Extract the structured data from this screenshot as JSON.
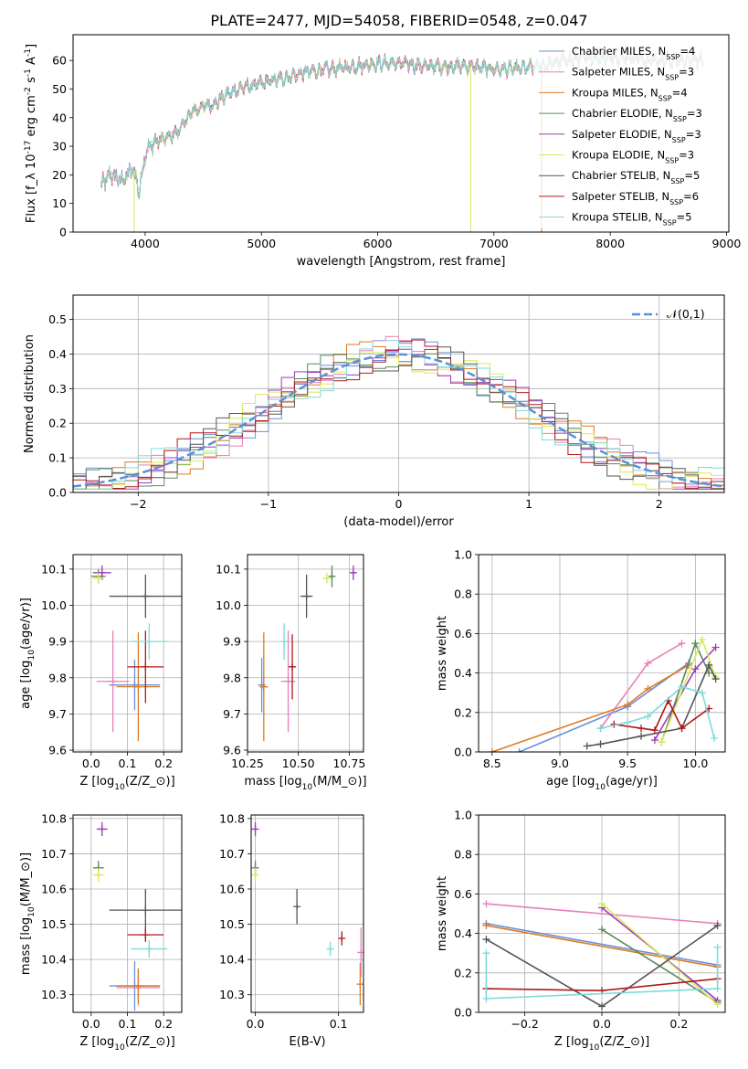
{
  "figure_title": "PLATE=2477, MJD=54058, FIBERID=0548, z=0.047",
  "series_styles": [
    {
      "name": "Chabrier MILES, N$_{SSP}$=4",
      "color": "#6a8fdc"
    },
    {
      "name": "Salpeter MILES, N$_{SSP}$=3",
      "color": "#e87fb8"
    },
    {
      "name": "Kroupa MILES, N$_{SSP}$=4",
      "color": "#dd7a22"
    },
    {
      "name": "Chabrier ELODIE, N$_{SSP}$=3",
      "color": "#5a8a5a"
    },
    {
      "name": "Salpeter ELODIE, N$_{SSP}$=3",
      "color": "#9b3db5"
    },
    {
      "name": "Kroupa ELODIE, N$_{SSP}$=3",
      "color": "#d6ea5a"
    },
    {
      "name": "Chabrier STELIB, N$_{SSP}$=5",
      "color": "#555555"
    },
    {
      "name": "Salpeter STELIB, N$_{SSP}$=6",
      "color": "#b01818"
    },
    {
      "name": "Kroupa STELIB, N$_{SSP}$=5",
      "color": "#7fdada"
    }
  ],
  "chart_data": [
    {
      "id": "spectrum",
      "type": "line",
      "xlabel": "wavelength [Angstrom, rest frame]",
      "ylabel": "Flux [$f_\\lambda 10^{-17}$ erg cm$^{-2}$ s$^{-1}$ A$^{-1}$]",
      "xlim": [
        3380,
        9020
      ],
      "ylim": [
        0,
        69
      ],
      "xticks": [
        4000,
        5000,
        6000,
        7000,
        8000,
        9000
      ],
      "yticks": [
        0,
        10,
        20,
        30,
        40,
        50,
        60
      ],
      "grid": false,
      "legend": "top-right",
      "continuum": {
        "x": [
          3620,
          3700,
          3800,
          3900,
          3950,
          4000,
          4100,
          4200,
          4300,
          4400,
          4500,
          4600,
          4700,
          4800,
          4900,
          5000,
          5200,
          5400,
          5600,
          5800,
          6000,
          6200,
          6400,
          6600,
          6800,
          7000,
          7200,
          7400,
          7600,
          7800,
          8000,
          8200,
          8400,
          8600,
          8800
        ],
        "y": [
          16,
          20,
          18,
          22,
          14,
          28,
          32,
          33,
          36,
          42,
          44,
          45,
          48,
          50,
          51,
          52,
          54,
          56,
          57,
          58,
          59,
          59,
          58,
          58,
          58,
          57,
          57,
          58,
          60,
          61,
          61,
          61,
          60,
          60,
          60
        ]
      },
      "dropouts": [
        {
          "series": "Kroupa ELODIE, N$_{SSP}$=3",
          "x": 3905,
          "y": 0
        },
        {
          "series": "Kroupa ELODIE, N$_{SSP}$=3",
          "x": 6800,
          "y": 0
        },
        {
          "series": "Kroupa MILES, N$_{SSP}$=4",
          "x": 7410,
          "y": 0
        }
      ]
    },
    {
      "id": "residuals",
      "type": "line",
      "xlabel": "(data-model)/error",
      "ylabel": "Normed distribution",
      "xlim": [
        -2.5,
        2.5
      ],
      "ylim": [
        0,
        0.57
      ],
      "xticks": [
        -2,
        -1,
        0,
        1,
        2
      ],
      "yticks": [
        0.0,
        0.1,
        0.2,
        0.3,
        0.4,
        0.5
      ],
      "grid": true,
      "legend": "top-right",
      "gaussian_label": "$\\mathcal{N}(0,1)$",
      "gaussian_color": "#5b8fd9",
      "bin_width": 0.1
    },
    {
      "id": "age-vs-Z",
      "type": "scatter",
      "xlabel": "Z [log$_{10}$($Z/Z_\\odot$)]",
      "ylabel": "age  [log$_{10}$($age/yr$)]",
      "xlim": [
        -0.05,
        0.25
      ],
      "ylim": [
        9.595,
        10.14
      ],
      "xticks": [
        0.0,
        0.1,
        0.2
      ],
      "yticks": [
        9.6,
        9.7,
        9.8,
        9.9,
        10.0,
        10.1
      ],
      "grid": true,
      "points": [
        {
          "x": 0.12,
          "y": 9.78,
          "ex": 0.07,
          "ey": 0.07,
          "c": 0
        },
        {
          "x": 0.06,
          "y": 9.79,
          "ex": 0.045,
          "ey": 0.14,
          "c": 1
        },
        {
          "x": 0.13,
          "y": 9.775,
          "ex": 0.06,
          "ey": 0.15,
          "c": 2
        },
        {
          "x": 0.02,
          "y": 10.08,
          "ex": 0.02,
          "ey": 0.02,
          "c": 3
        },
        {
          "x": 0.03,
          "y": 10.09,
          "ex": 0.025,
          "ey": 0.02,
          "c": 4
        },
        {
          "x": 0.02,
          "y": 10.075,
          "ex": 0.015,
          "ey": 0.015,
          "c": 5
        },
        {
          "x": 0.15,
          "y": 10.025,
          "ex": 0.1,
          "ey": 0.06,
          "c": 6
        },
        {
          "x": 0.15,
          "y": 9.83,
          "ex": 0.05,
          "ey": 0.1,
          "c": 7
        },
        {
          "x": 0.16,
          "y": 9.9,
          "ex": 0.05,
          "ey": 0.05,
          "c": 8
        }
      ]
    },
    {
      "id": "age-vs-mass",
      "type": "scatter",
      "xlabel": "mass [log$_{10}$($M/M_\\odot$)]",
      "ylabel": "",
      "xlim": [
        10.25,
        10.82
      ],
      "ylim": [
        9.595,
        10.14
      ],
      "xticks": [
        10.25,
        10.5,
        10.75
      ],
      "yticks": [
        9.6,
        9.7,
        9.8,
        9.9,
        10.0,
        10.1
      ],
      "grid": true,
      "points": [
        {
          "x": 10.32,
          "y": 9.78,
          "ex": 0.015,
          "ey": 0.075,
          "c": 0
        },
        {
          "x": 10.45,
          "y": 9.79,
          "ex": 0.035,
          "ey": 0.14,
          "c": 1
        },
        {
          "x": 10.33,
          "y": 9.775,
          "ex": 0.02,
          "ey": 0.15,
          "c": 2
        },
        {
          "x": 10.665,
          "y": 10.08,
          "ex": 0.012,
          "ey": 0.03,
          "c": 3
        },
        {
          "x": 10.77,
          "y": 10.09,
          "ex": 0.01,
          "ey": 0.02,
          "c": 4
        },
        {
          "x": 10.64,
          "y": 10.075,
          "ex": 0.02,
          "ey": 0.015,
          "c": 5
        },
        {
          "x": 10.54,
          "y": 10.025,
          "ex": 0.03,
          "ey": 0.06,
          "c": 6
        },
        {
          "x": 10.47,
          "y": 9.83,
          "ex": 0.015,
          "ey": 0.09,
          "c": 7
        },
        {
          "x": 10.43,
          "y": 9.9,
          "ex": 0.015,
          "ey": 0.05,
          "c": 8
        }
      ]
    },
    {
      "id": "mass-weight-vs-age",
      "type": "line",
      "xlabel": "age  [log$_{10}$($age/yr$)]",
      "ylabel": "mass weight",
      "xlim": [
        8.4,
        10.22
      ],
      "ylim": [
        0,
        1
      ],
      "xticks": [
        8.5,
        9.0,
        9.5,
        10.0
      ],
      "yticks": [
        0.0,
        0.2,
        0.4,
        0.6,
        0.8,
        1.0
      ],
      "grid": true,
      "series": [
        {
          "c": 0,
          "x": [
            8.7,
            9.5,
            9.95
          ],
          "y": [
            0.0,
            0.23,
            0.45
          ]
        },
        {
          "c": 1,
          "x": [
            9.3,
            9.65,
            9.9
          ],
          "y": [
            0.12,
            0.45,
            0.55
          ]
        },
        {
          "c": 2,
          "x": [
            8.5,
            9.5,
            9.65,
            9.95
          ],
          "y": [
            0.0,
            0.24,
            0.32,
            0.44
          ]
        },
        {
          "c": 3,
          "x": [
            9.75,
            10.0,
            10.1
          ],
          "y": [
            0.05,
            0.55,
            0.4
          ]
        },
        {
          "c": 4,
          "x": [
            9.7,
            10.0,
            10.15
          ],
          "y": [
            0.06,
            0.42,
            0.53
          ]
        },
        {
          "c": 5,
          "x": [
            9.75,
            10.05,
            10.15
          ],
          "y": [
            0.05,
            0.57,
            0.38
          ]
        },
        {
          "c": 6,
          "x": [
            9.2,
            9.3,
            9.6,
            9.9,
            10.1,
            10.15
          ],
          "y": [
            0.03,
            0.04,
            0.08,
            0.12,
            0.44,
            0.37
          ]
        },
        {
          "c": 7,
          "x": [
            9.4,
            9.6,
            9.7,
            9.8,
            9.9,
            10.1
          ],
          "y": [
            0.14,
            0.12,
            0.11,
            0.26,
            0.12,
            0.22
          ]
        },
        {
          "c": 8,
          "x": [
            9.3,
            9.5,
            9.65,
            9.9,
            10.05,
            10.14
          ],
          "y": [
            0.12,
            0.15,
            0.18,
            0.33,
            0.3,
            0.07
          ]
        }
      ]
    },
    {
      "id": "mass-vs-Z",
      "type": "scatter",
      "xlabel": "Z [log$_{10}$($Z/Z_\\odot$)]",
      "ylabel": "mass [log$_{10}$($M/M_\\odot$)]",
      "xlim": [
        -0.05,
        0.25
      ],
      "ylim": [
        10.25,
        10.81
      ],
      "xticks": [
        0.0,
        0.1,
        0.2
      ],
      "yticks": [
        10.3,
        10.4,
        10.5,
        10.6,
        10.7,
        10.8
      ],
      "grid": true,
      "points": [
        {
          "x": 0.12,
          "y": 10.325,
          "ex": 0.07,
          "ey": 0.07,
          "c": 0
        },
        {
          "x": 0.13,
          "y": 10.32,
          "ex": 0.06,
          "ey": 0.05,
          "c": 1
        },
        {
          "x": 0.13,
          "y": 10.325,
          "ex": 0.06,
          "ey": 0.05,
          "c": 2
        },
        {
          "x": 0.02,
          "y": 10.66,
          "ex": 0.015,
          "ey": 0.02,
          "c": 3
        },
        {
          "x": 0.03,
          "y": 10.77,
          "ex": 0.015,
          "ey": 0.02,
          "c": 4
        },
        {
          "x": 0.02,
          "y": 10.64,
          "ex": 0.015,
          "ey": 0.02,
          "c": 5
        },
        {
          "x": 0.15,
          "y": 10.54,
          "ex": 0.1,
          "ey": 0.06,
          "c": 6
        },
        {
          "x": 0.15,
          "y": 10.47,
          "ex": 0.05,
          "ey": 0.02,
          "c": 7
        },
        {
          "x": 0.16,
          "y": 10.43,
          "ex": 0.05,
          "ey": 0.025,
          "c": 8
        }
      ]
    },
    {
      "id": "mass-vs-EBV",
      "type": "scatter",
      "xlabel": "E(B-V)",
      "ylabel": "",
      "xlim": [
        -0.005,
        0.13
      ],
      "ylim": [
        10.25,
        10.81
      ],
      "xticks": [
        0.0,
        0.1
      ],
      "yticks": [
        10.3,
        10.4,
        10.5,
        10.6,
        10.7,
        10.8
      ],
      "grid": true,
      "points": [
        {
          "x": 0.126,
          "y": 10.33,
          "ex": 0,
          "ey": 0.06,
          "c": 2
        },
        {
          "x": 0.127,
          "y": 10.42,
          "ex": 0,
          "ey": 0.07,
          "c": 1
        },
        {
          "x": 0.0,
          "y": 10.66,
          "ex": 0,
          "ey": 0.02,
          "c": 3
        },
        {
          "x": 0.0,
          "y": 10.77,
          "ex": 0,
          "ey": 0.02,
          "c": 4
        },
        {
          "x": 0.0,
          "y": 10.64,
          "ex": 0,
          "ey": 0.02,
          "c": 5
        },
        {
          "x": 0.05,
          "y": 10.55,
          "ex": 0,
          "ey": 0.05,
          "c": 6
        },
        {
          "x": 0.104,
          "y": 10.46,
          "ex": 0,
          "ey": 0.02,
          "c": 7
        },
        {
          "x": 0.09,
          "y": 10.43,
          "ex": 0,
          "ey": 0.02,
          "c": 8
        }
      ]
    },
    {
      "id": "mass-weight-vs-Z",
      "type": "line",
      "xlabel": "Z [log$_{10}$($Z/Z_\\odot$)]",
      "ylabel": "mass weight",
      "xlim": [
        -0.32,
        0.32
      ],
      "ylim": [
        0,
        1
      ],
      "xticks": [
        -0.2,
        0.0,
        0.2
      ],
      "yticks": [
        0.0,
        0.2,
        0.4,
        0.6,
        0.8,
        1.0
      ],
      "grid": true,
      "series": [
        {
          "c": 0,
          "x": [
            -0.3,
            0.3
          ],
          "y": [
            0.45,
            0.24
          ]
        },
        {
          "c": 1,
          "x": [
            -0.3,
            0.3
          ],
          "y": [
            0.55,
            0.45
          ]
        },
        {
          "c": 2,
          "x": [
            -0.3,
            0.3
          ],
          "y": [
            0.44,
            0.23
          ]
        },
        {
          "c": 3,
          "x": [
            0.0,
            0.3
          ],
          "y": [
            0.42,
            0.05
          ]
        },
        {
          "c": 4,
          "x": [
            0.0,
            0.3
          ],
          "y": [
            0.53,
            0.06
          ]
        },
        {
          "c": 5,
          "x": [
            0.0,
            0.3
          ],
          "y": [
            0.55,
            0.04
          ]
        },
        {
          "c": 6,
          "x": [
            -0.3,
            0.0,
            0.3
          ],
          "y": [
            0.37,
            0.03,
            0.44
          ]
        },
        {
          "c": 7,
          "x": [
            -0.3,
            0.0,
            0.3
          ],
          "y": [
            0.12,
            0.11,
            0.17
          ]
        },
        {
          "c": 8,
          "x": [
            -0.3,
            -0.3,
            0.3,
            0.3
          ],
          "y": [
            0.3,
            0.07,
            0.12,
            0.33
          ]
        }
      ]
    }
  ]
}
